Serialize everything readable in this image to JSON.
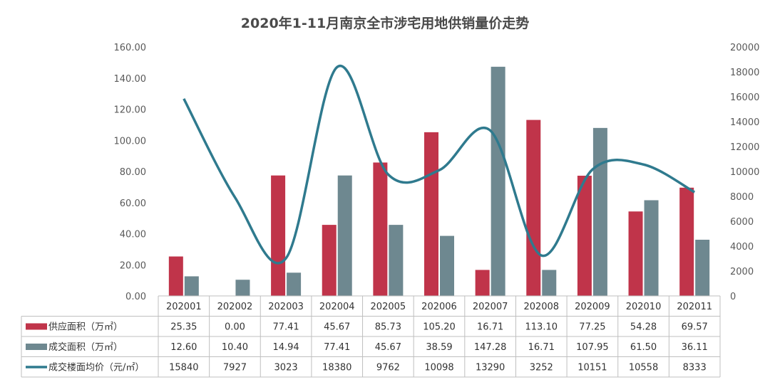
{
  "chart_data": {
    "type": "bar+line",
    "title": "2020年1-11月南京全市涉宅用地供销量价走势",
    "categories": [
      "202001",
      "202002",
      "202003",
      "202004",
      "202005",
      "202006",
      "202007",
      "202008",
      "202009",
      "202010",
      "202011"
    ],
    "y_left": {
      "ticks": [
        "0.00",
        "20.00",
        "40.00",
        "60.00",
        "80.00",
        "100.00",
        "120.00",
        "140.00",
        "160.00"
      ],
      "ylim": [
        0,
        160
      ]
    },
    "y_right": {
      "ticks": [
        "0",
        "2000",
        "4000",
        "6000",
        "8000",
        "10000",
        "12000",
        "14000",
        "16000",
        "18000",
        "20000"
      ],
      "ylim": [
        0,
        20000
      ]
    },
    "grid": false,
    "legend": "table-left",
    "series": [
      {
        "name": "供应面积（万㎡）",
        "kind": "bar",
        "axis": "left",
        "color": "#c0344a",
        "values": [
          25.35,
          0.0,
          77.41,
          45.67,
          85.73,
          105.2,
          16.71,
          113.1,
          77.25,
          54.28,
          69.57
        ],
        "labels": [
          "25.35",
          "0.00",
          "77.41",
          "45.67",
          "85.73",
          "105.20",
          "16.71",
          "113.10",
          "77.25",
          "54.28",
          "69.57"
        ]
      },
      {
        "name": "成交面积（万㎡）",
        "kind": "bar",
        "axis": "left",
        "color": "#6e8890",
        "values": [
          12.6,
          10.4,
          14.94,
          77.41,
          45.67,
          38.59,
          147.28,
          16.71,
          107.95,
          61.5,
          36.11
        ],
        "labels": [
          "12.60",
          "10.40",
          "14.94",
          "77.41",
          "45.67",
          "38.59",
          "147.28",
          "16.71",
          "107.95",
          "61.50",
          "36.11"
        ]
      },
      {
        "name": "成交楼面均价（元/㎡）",
        "kind": "line",
        "axis": "right",
        "color": "#2f7a8e",
        "values": [
          15840,
          7927,
          3023,
          18380,
          9762,
          10098,
          13290,
          3252,
          10151,
          10558,
          8333
        ],
        "labels": [
          "15840",
          "7927",
          "3023",
          "18380",
          "9762",
          "10098",
          "13290",
          "3252",
          "10151",
          "10558",
          "8333"
        ]
      }
    ]
  }
}
